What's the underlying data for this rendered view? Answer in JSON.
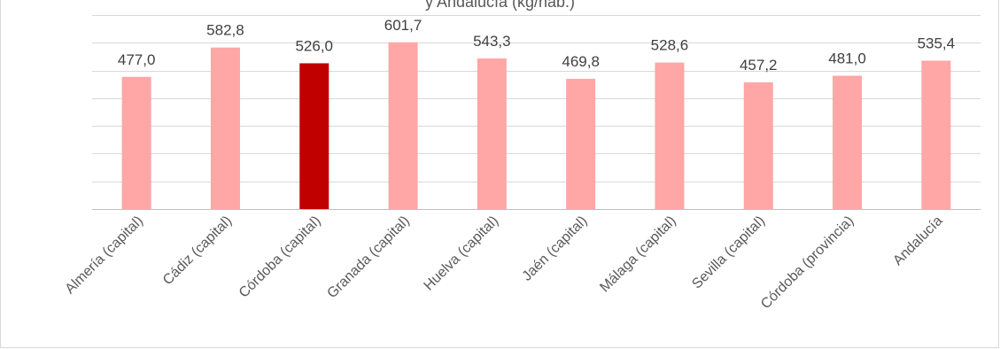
{
  "chart_data": {
    "type": "bar",
    "title": "y Andalucía (kg/hab.)",
    "categories": [
      "Almería (capital)",
      "Cádiz (capital)",
      "Córdoba (capital)",
      "Granada (capital)",
      "Huelva (capital)",
      "Jaén (capital)",
      "Málaga (capital)",
      "Sevilla (capital)",
      "Córdoba (provincia)",
      "Andalucía"
    ],
    "values": [
      477.0,
      582.8,
      526.0,
      601.7,
      543.3,
      469.8,
      528.6,
      457.2,
      481.0,
      535.4
    ],
    "value_labels": [
      "477,0",
      "582,8",
      "526,0",
      "601,7",
      "543,3",
      "469,8",
      "528,6",
      "457,2",
      "481,0",
      "535,4"
    ],
    "highlight_index": 2,
    "ylim": [
      0,
      700
    ],
    "gridline_step": 100,
    "grid": true,
    "colors": {
      "bar": "#ffa6a6",
      "highlight": "#c00000",
      "grid": "#d9d9d9",
      "axis": "#bfbfbf"
    }
  }
}
